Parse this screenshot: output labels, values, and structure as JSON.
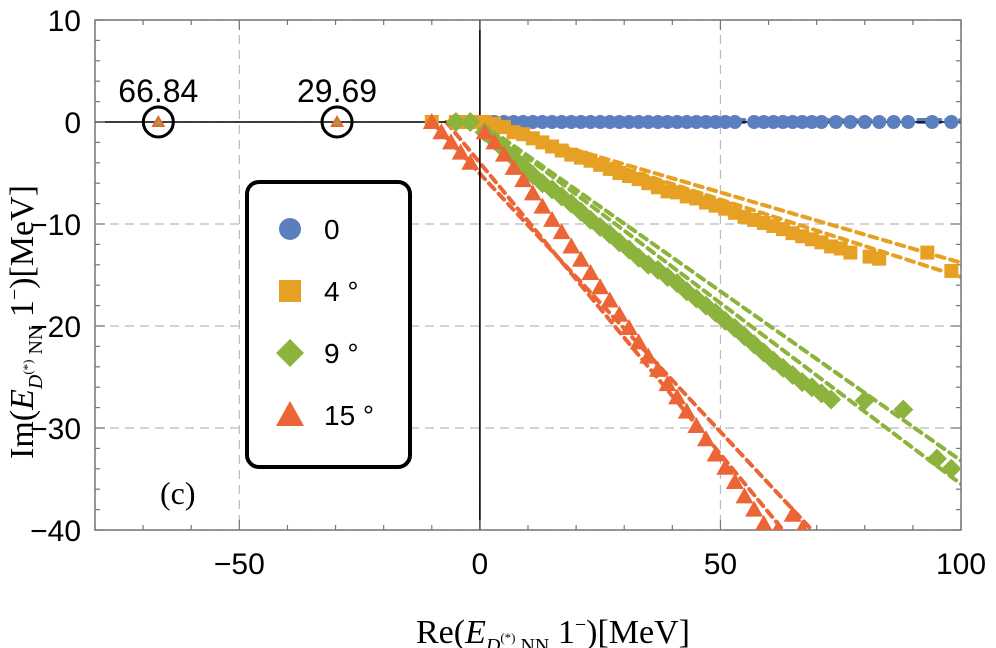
{
  "chart_data": {
    "type": "scatter",
    "panel_label": "(c)",
    "xlabel": {
      "prefix": "Re(",
      "E": "E",
      "sub_D": "D",
      "sup": "(*)",
      "sub_rest": " NN",
      "state": " 1",
      "state_sup": "−",
      "suffix": ")[MeV]"
    },
    "ylabel": {
      "prefix": "Im(",
      "E": "E",
      "sub_D": "D",
      "sup": "(*)",
      "sub_rest": " NN",
      "state": " 1",
      "state_sup": "−",
      "suffix": ")[MeV]"
    },
    "xlim": [
      -80,
      100
    ],
    "ylim": [
      -40,
      10
    ],
    "x_ticks": [
      -50,
      0,
      50,
      100
    ],
    "x_tick_labels": [
      "−50",
      "0",
      "50",
      "100"
    ],
    "y_ticks": [
      10,
      0,
      -10,
      -20,
      -30,
      -40
    ],
    "y_tick_labels": [
      "10",
      "0",
      "−10",
      "−20",
      "−30",
      "−40"
    ],
    "grid": "dashed at major ticks",
    "bound_states": [
      {
        "x": -66.84,
        "y": 0,
        "label": "66.84"
      },
      {
        "x": -29.69,
        "y": 0,
        "label": "29.69"
      }
    ],
    "series": [
      {
        "name": "0",
        "marker": "circle",
        "color": "#5B7FBE",
        "rotation_deg": 0,
        "points": [
          [
            -5,
            0
          ],
          [
            -1,
            0
          ],
          [
            1,
            0
          ],
          [
            3,
            0
          ],
          [
            5,
            0
          ],
          [
            7,
            0
          ],
          [
            9,
            0
          ],
          [
            11,
            0
          ],
          [
            13,
            0
          ],
          [
            15,
            0
          ],
          [
            17,
            0
          ],
          [
            19,
            0
          ],
          [
            21,
            0
          ],
          [
            23,
            0
          ],
          [
            25,
            0
          ],
          [
            27,
            0
          ],
          [
            29,
            0
          ],
          [
            31,
            0
          ],
          [
            33,
            0
          ],
          [
            35,
            0
          ],
          [
            37,
            0
          ],
          [
            39,
            0
          ],
          [
            41,
            0
          ],
          [
            43,
            0
          ],
          [
            45,
            0
          ],
          [
            47,
            0
          ],
          [
            49,
            0
          ],
          [
            51,
            0
          ],
          [
            53,
            0
          ],
          [
            57,
            0
          ],
          [
            59,
            0
          ],
          [
            61,
            0
          ],
          [
            63,
            0
          ],
          [
            65,
            0
          ],
          [
            67,
            0
          ],
          [
            69,
            0
          ],
          [
            71,
            0
          ],
          [
            74,
            0
          ],
          [
            77,
            0
          ],
          [
            80,
            0
          ],
          [
            83,
            0
          ],
          [
            86,
            0
          ],
          [
            89,
            0
          ],
          [
            94,
            0
          ],
          [
            98,
            0
          ]
        ],
        "lines": [
          [
            [
              -2,
              0
            ],
            [
              100,
              0
            ]
          ],
          [
            [
              -2,
              0.2
            ],
            [
              100,
              0.2
            ]
          ]
        ]
      },
      {
        "name": "4 °",
        "marker": "square",
        "color": "#E6A125",
        "rotation_deg": 4,
        "points": [
          [
            -10,
            0
          ],
          [
            -5,
            0
          ],
          [
            -3,
            0
          ],
          [
            -1,
            0
          ],
          [
            1,
            0
          ],
          [
            3,
            -0.2
          ],
          [
            5,
            -0.5
          ],
          [
            7,
            -1
          ],
          [
            9,
            -1.2
          ],
          [
            11,
            -1.6
          ],
          [
            13,
            -2
          ],
          [
            15,
            -2.4
          ],
          [
            17,
            -2.8
          ],
          [
            19,
            -3.2
          ],
          [
            21,
            -3.5
          ],
          [
            23,
            -3.8
          ],
          [
            25,
            -4.2
          ],
          [
            27,
            -4.6
          ],
          [
            29,
            -5
          ],
          [
            31,
            -5.3
          ],
          [
            33,
            -5.6
          ],
          [
            35,
            -6
          ],
          [
            37,
            -6.4
          ],
          [
            39,
            -6.8
          ],
          [
            41,
            -6.9
          ],
          [
            43,
            -7.3
          ],
          [
            45,
            -7.5
          ],
          [
            47,
            -7.9
          ],
          [
            49,
            -8.2
          ],
          [
            51,
            -8.5
          ],
          [
            53,
            -8.9
          ],
          [
            55,
            -9.3
          ],
          [
            57,
            -9.6
          ],
          [
            59,
            -9.9
          ],
          [
            61,
            -10.2
          ],
          [
            63,
            -10.5
          ],
          [
            65,
            -10.9
          ],
          [
            67,
            -11.2
          ],
          [
            69,
            -11.5
          ],
          [
            71,
            -11.8
          ],
          [
            73,
            -12.2
          ],
          [
            75,
            -12.4
          ],
          [
            77,
            -12.8
          ],
          [
            81,
            -13.2
          ],
          [
            83,
            -13.4
          ],
          [
            93,
            -12.8
          ],
          [
            98,
            -14.6
          ]
        ],
        "lines": [
          [
            [
              0,
              0
            ],
            [
              100,
              -13.8
            ]
          ],
          [
            [
              0,
              0
            ],
            [
              100,
              -15.2
            ]
          ]
        ]
      },
      {
        "name": "9 °",
        "marker": "diamond",
        "color": "#8CB33B",
        "rotation_deg": 9,
        "points": [
          [
            -5,
            0
          ],
          [
            -2,
            0
          ],
          [
            1,
            -1
          ],
          [
            3,
            -1.8
          ],
          [
            5,
            -2.7
          ],
          [
            7,
            -3.5
          ],
          [
            9,
            -4.3
          ],
          [
            11,
            -5.2
          ],
          [
            13,
            -6
          ],
          [
            15,
            -6.6
          ],
          [
            17,
            -7.3
          ],
          [
            19,
            -8
          ],
          [
            21,
            -8.8
          ],
          [
            23,
            -9.6
          ],
          [
            25,
            -10.3
          ],
          [
            27,
            -11
          ],
          [
            29,
            -11.8
          ],
          [
            31,
            -12.5
          ],
          [
            33,
            -13.3
          ],
          [
            35,
            -14
          ],
          [
            37,
            -14.5
          ],
          [
            39,
            -15.2
          ],
          [
            41,
            -15.8
          ],
          [
            43,
            -16.6
          ],
          [
            45,
            -17.3
          ],
          [
            47,
            -18
          ],
          [
            49,
            -18.7
          ],
          [
            51,
            -19.5
          ],
          [
            53,
            -20.2
          ],
          [
            55,
            -21
          ],
          [
            57,
            -21.8
          ],
          [
            59,
            -22.6
          ],
          [
            61,
            -23.4
          ],
          [
            63,
            -24.1
          ],
          [
            65,
            -24.8
          ],
          [
            67,
            -25.5
          ],
          [
            69,
            -26
          ],
          [
            71,
            -26.6
          ],
          [
            73,
            -27.2
          ],
          [
            80,
            -27.3
          ],
          [
            88,
            -28.2
          ],
          [
            95,
            -33
          ],
          [
            98,
            -34
          ]
        ],
        "lines": [
          [
            [
              0,
              0
            ],
            [
              100,
              -33.2
            ]
          ],
          [
            [
              0,
              0
            ],
            [
              100,
              -35.5
            ]
          ]
        ]
      },
      {
        "name": "15 °",
        "marker": "triangle",
        "color": "#EB6537",
        "rotation_deg": 15,
        "points": [
          [
            -10,
            0
          ],
          [
            -8,
            -1
          ],
          [
            -6,
            -2
          ],
          [
            -4,
            -3
          ],
          [
            -2,
            -4
          ],
          [
            1,
            -1
          ],
          [
            3,
            -2
          ],
          [
            5,
            -3.2
          ],
          [
            7,
            -4.5
          ],
          [
            9,
            -5.7
          ],
          [
            11,
            -7
          ],
          [
            13,
            -8.3
          ],
          [
            15,
            -9.6
          ],
          [
            17,
            -10.8
          ],
          [
            19,
            -12.2
          ],
          [
            21,
            -13.5
          ],
          [
            23,
            -14.8
          ],
          [
            25,
            -16.2
          ],
          [
            27,
            -17.5
          ],
          [
            29,
            -18.9
          ],
          [
            31,
            -20.2
          ],
          [
            33,
            -21.6
          ],
          [
            35,
            -23
          ],
          [
            37,
            -24.3
          ],
          [
            39,
            -25.7
          ],
          [
            41,
            -27
          ],
          [
            43,
            -28.4
          ],
          [
            45,
            -29.8
          ],
          [
            47,
            -31.1
          ],
          [
            49,
            -32.6
          ],
          [
            51,
            -33.9
          ],
          [
            53,
            -35.3
          ],
          [
            55,
            -36.7
          ],
          [
            57,
            -38
          ],
          [
            59,
            -39.4
          ],
          [
            62,
            -39.9
          ],
          [
            65,
            -38.5
          ],
          [
            67,
            -39.9
          ]
        ],
        "lines": [
          [
            [
              -10,
              0
            ],
            [
              69,
              -40
            ]
          ],
          [
            [
              -7,
              0
            ],
            [
              63,
              -40
            ]
          ]
        ]
      }
    ],
    "legend": {
      "placement": "upper-left inside plot",
      "entries": [
        "0",
        "4 °",
        "9 °",
        "15 °"
      ]
    }
  }
}
